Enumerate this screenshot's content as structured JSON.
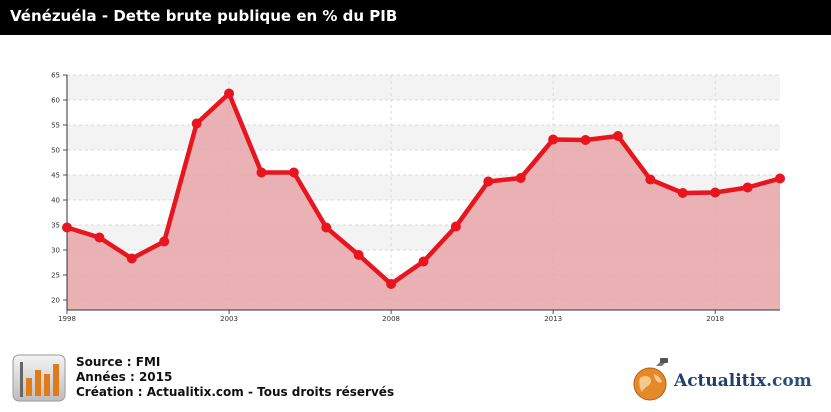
{
  "title": "Vénézuéla - Dette brute publique en % du PIB",
  "footer": {
    "source": "Source : FMI",
    "years": "Années : 2015",
    "creation": "Création : Actualitix.com - Tous droits réservés"
  },
  "brand": {
    "name": "Actualitix",
    "tld": ".com"
  },
  "colors": {
    "line": "#e8141e",
    "fill": "#e8a5a8",
    "title_bg": "#000000"
  },
  "chart_data": {
    "type": "area",
    "x": [
      1998,
      1999,
      2000,
      2001,
      2002,
      2003,
      2004,
      2005,
      2006,
      2007,
      2008,
      2009,
      2010,
      2011,
      2012,
      2013,
      2014,
      2015,
      2016,
      2017,
      2018,
      2019,
      2020
    ],
    "series": [
      {
        "values": [
          34.5,
          32.5,
          28.3,
          31.7,
          55.3,
          61.3,
          45.5,
          45.5,
          34.5,
          29.0,
          23.2,
          27.7,
          34.7,
          43.7,
          44.4,
          52.1,
          52.0,
          52.8,
          44.1,
          41.4,
          41.5,
          42.5,
          44.3
        ]
      }
    ],
    "ylim": [
      18,
      65
    ],
    "yticks": [
      20,
      25,
      30,
      35,
      40,
      45,
      50,
      55,
      60,
      65
    ],
    "xticks": [
      1998,
      2003,
      2008,
      2013,
      2018
    ],
    "xlim": [
      1998,
      2020
    ],
    "grid": true
  }
}
